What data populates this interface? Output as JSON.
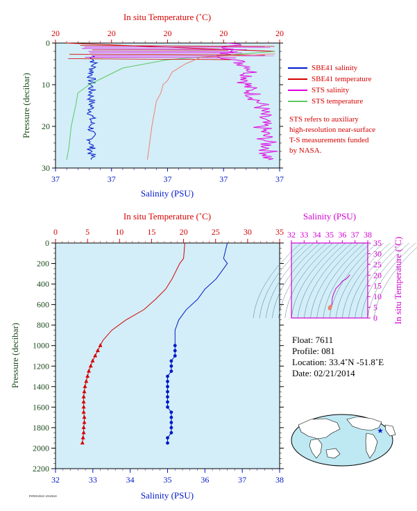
{
  "colors": {
    "plot_bg": "#d3eef8",
    "temp_red": "#d40000",
    "sal_blue": "#0018c8",
    "sts_magenta": "#e000e0",
    "sts_green": "#5ec85e",
    "sbe_temp_salmon": "#f08070",
    "pressure_green": "#1a4a1a"
  },
  "top_chart": {
    "type": "line",
    "x_top_label": "In situ Temperature (˚C)",
    "x_top_ticks": [
      "20",
      "20",
      "20",
      "20",
      "20"
    ],
    "x_bottom_label": "Salinity (PSU)",
    "x_bottom_ticks": [
      "37",
      "37",
      "37",
      "37",
      "37"
    ],
    "y_label": "Pressure (decibar)",
    "y_ticks": [
      "0",
      "10",
      "20",
      "30"
    ],
    "y_range": [
      0,
      30
    ],
    "legend": [
      {
        "name": "SBE41 salinity",
        "color": "#0018c8"
      },
      {
        "name": "SBE41 temperature",
        "color": "#d40000"
      },
      {
        "name": "STS salinity",
        "color": "#e000e0"
      },
      {
        "name": "STS temperature",
        "color": "#5ec85e"
      }
    ],
    "note": [
      "STS refers to auxiliary",
      "high-resolution near-surface",
      "T-S measurements funded",
      "by NASA."
    ]
  },
  "main_chart": {
    "type": "line",
    "x_top_label": "In situ Temperature (˚C)",
    "x_top_ticks": [
      "0",
      "5",
      "10",
      "15",
      "20",
      "25",
      "30",
      "35"
    ],
    "x_bottom_label": "Salinity (PSU)",
    "x_bottom_ticks": [
      "32",
      "33",
      "34",
      "35",
      "36",
      "37",
      "38"
    ],
    "y_label": "Pressure (decibar)",
    "y_ticks": [
      "0",
      "200",
      "400",
      "600",
      "800",
      "1000",
      "1200",
      "1400",
      "1600",
      "1800",
      "2000",
      "2200"
    ],
    "y_range": [
      0,
      2200
    ],
    "temp_range": [
      0,
      35
    ],
    "sal_range": [
      32,
      38
    ]
  },
  "ts_chart": {
    "type": "line",
    "x_top_label": "Salinity (PSU)",
    "x_top_ticks": [
      "32",
      "33",
      "34",
      "35",
      "36",
      "37",
      "38"
    ],
    "y_right_label": "In situ Temperature (˚C)",
    "y_right_ticks": [
      "0",
      "5",
      "10",
      "15",
      "20",
      "25",
      "30",
      "35"
    ],
    "sal_range": [
      32,
      38
    ],
    "temp_range": [
      0,
      35
    ]
  },
  "chart_data": [
    {
      "type": "line",
      "title": "",
      "xlabel": "In situ Temperature (˚C) / Salinity (PSU)",
      "ylabel": "Pressure (decibar)",
      "ylim": [
        0,
        30
      ],
      "series": [
        {
          "name": "SBE41 salinity",
          "points_pressure": [
            3,
            5,
            8,
            10,
            15,
            20,
            25,
            28
          ],
          "points_x_frac": [
            0.17,
            0.17,
            0.16,
            0.16,
            0.16,
            0.16,
            0.16,
            0.16
          ]
        },
        {
          "name": "SBE41 temperature",
          "points_pressure": [
            0,
            1,
            2
          ],
          "points_x_frac": [
            0.05,
            0.5,
            0.98
          ]
        },
        {
          "name": "STS salinity",
          "points_pressure": [
            0,
            3,
            6,
            10,
            15,
            20,
            25,
            28
          ],
          "points_x_frac": [
            0.8,
            0.75,
            0.88,
            0.85,
            0.92,
            0.92,
            0.95,
            0.95
          ]
        },
        {
          "name": "STS temperature",
          "points_pressure": [
            2,
            4,
            6,
            10,
            12,
            15,
            20,
            25,
            28
          ],
          "points_x_frac": [
            0.98,
            0.5,
            0.3,
            0.15,
            0.1,
            0.09,
            0.07,
            0.06,
            0.05
          ]
        }
      ]
    },
    {
      "type": "line",
      "title": "",
      "xlabel": "In situ Temperature (˚C) / Salinity (PSU)",
      "ylabel": "Pressure (decibar)",
      "ylim": [
        0,
        2200
      ],
      "series": [
        {
          "name": "In situ Temperature (˚C)",
          "pressure": [
            0,
            150,
            200,
            350,
            450,
            550,
            650,
            750,
            850,
            950,
            1000,
            1050,
            1100,
            1150,
            1200,
            1250,
            1300,
            1350,
            1400,
            1450,
            1500,
            1550,
            1600,
            1650,
            1700,
            1750,
            1800,
            1850,
            1900,
            1950
          ],
          "values": [
            20.2,
            20.0,
            19.4,
            18.2,
            17.2,
            15.6,
            13.8,
            11.0,
            8.8,
            7.4,
            7.0,
            6.6,
            6.2,
            5.8,
            5.5,
            5.2,
            5.0,
            4.8,
            4.6,
            4.5,
            4.4,
            4.4,
            4.4,
            4.4,
            4.5,
            4.5,
            4.4,
            4.4,
            4.3,
            4.2
          ]
        },
        {
          "name": "Salinity (PSU)",
          "pressure": [
            0,
            150,
            200,
            350,
            450,
            550,
            650,
            750,
            850,
            950,
            1000,
            1050,
            1100,
            1150,
            1200,
            1250,
            1300,
            1350,
            1400,
            1450,
            1500,
            1550,
            1600,
            1650,
            1700,
            1750,
            1800,
            1850,
            1900,
            1950
          ],
          "values": [
            36.6,
            36.5,
            36.6,
            36.3,
            36.0,
            35.8,
            35.5,
            35.3,
            35.2,
            35.2,
            35.2,
            35.2,
            35.2,
            35.1,
            35.1,
            35.1,
            35.0,
            35.0,
            35.0,
            35.0,
            35.0,
            35.0,
            35.0,
            35.1,
            35.1,
            35.1,
            35.1,
            35.1,
            35.0,
            35.0
          ]
        }
      ]
    },
    {
      "type": "line",
      "title": "",
      "xlabel": "Salinity (PSU)",
      "ylabel": "In situ Temperature (˚C)",
      "xlim": [
        32,
        38
      ],
      "ylim": [
        0,
        35
      ],
      "series": [
        {
          "name": "",
          "salinity": [
            36.6,
            36.5,
            36.3,
            36.0,
            35.8,
            35.5,
            35.3,
            35.2,
            35.2,
            35.1,
            35.0,
            35.0
          ],
          "temperature": [
            20.2,
            19.4,
            18.2,
            17.2,
            15.6,
            13.8,
            11.0,
            8.8,
            7.0,
            5.5,
            4.6,
            4.3
          ]
        }
      ]
    }
  ],
  "float_info": {
    "float": "Float:  7611",
    "profile": "Profile:  081",
    "location": "Location:  33.4˚N  -51.8˚E",
    "date": "Date:  02/21/2014"
  },
  "footer_tiny": "FSP20140221 20140224"
}
